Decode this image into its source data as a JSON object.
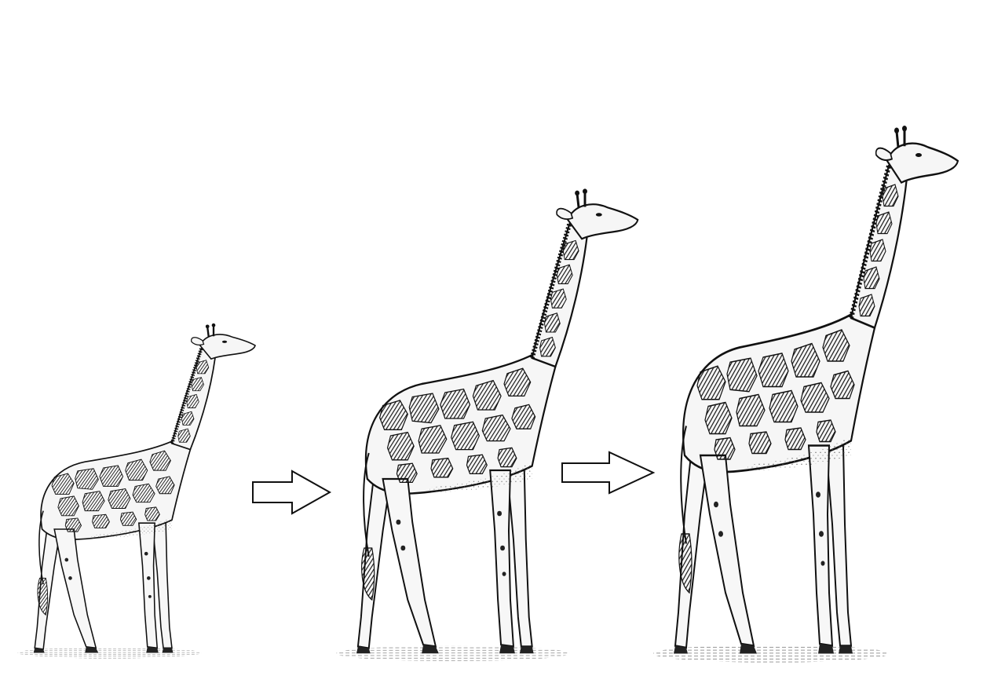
{
  "figures": [
    {
      "id": "giraffe-small",
      "stage": 1
    },
    {
      "id": "giraffe-medium",
      "stage": 2
    },
    {
      "id": "giraffe-large",
      "stage": 3
    }
  ],
  "arrows": [
    {
      "id": "arrow-1",
      "direction": "right"
    },
    {
      "id": "arrow-2",
      "direction": "right"
    }
  ],
  "colors": {
    "background": "#ffffff",
    "ink": "#111111",
    "patch": "#1a1a1a",
    "skin": "#f4f4f4"
  }
}
